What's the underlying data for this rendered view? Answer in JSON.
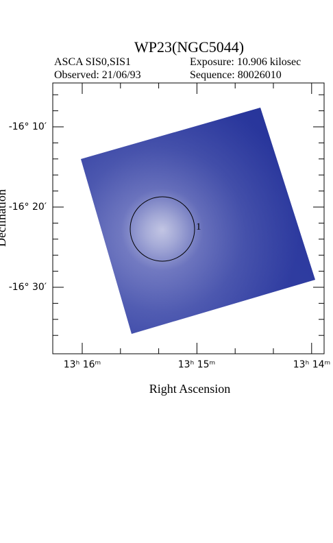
{
  "header": {
    "title": "WP23(NGC5044)",
    "instrument": "ASCA SIS0,SIS1",
    "exposure": "Exposure: 10.906 kilosec",
    "observed": "Observed: 21/06/93",
    "sequence": "Sequence: 80026010"
  },
  "axes": {
    "x_label": "Right Ascension",
    "y_label": "Declination",
    "x_ticks": [
      "13ʰ 16ᵐ",
      "13ʰ 15ᵐ",
      "13ʰ 14ᵐ"
    ],
    "y_ticks": [
      "-16° 10′",
      "-16° 20′",
      "-16° 30′"
    ]
  },
  "sources": [
    {
      "label": "1"
    }
  ]
}
